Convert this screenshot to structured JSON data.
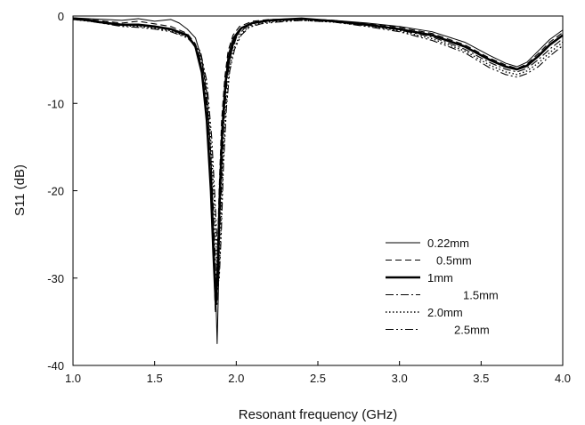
{
  "chart_data": {
    "type": "line",
    "title": "",
    "xlabel": "Resonant frequency (GHz)",
    "ylabel": "S11 (dB)",
    "xlim": [
      1.0,
      4.0
    ],
    "ylim": [
      -40,
      0
    ],
    "xticks": [
      1.0,
      1.5,
      2.0,
      2.5,
      3.0,
      3.5,
      4.0
    ],
    "xtick_labels": [
      "1.0",
      "1.5",
      "2.0",
      "2.5",
      "3.0",
      "3.5",
      "4.0"
    ],
    "yticks": [
      0,
      -10,
      -20,
      -30,
      -40
    ],
    "ytick_labels": [
      "0",
      "-10",
      "-20",
      "-30",
      "-40"
    ],
    "grid": false,
    "legend_position": "lower-right",
    "series": [
      {
        "name": "0.22mm",
        "style": "solid-thin",
        "color": "#000000",
        "points": [
          [
            1.0,
            -0.2
          ],
          [
            1.1,
            -0.3
          ],
          [
            1.2,
            -0.4
          ],
          [
            1.3,
            -0.5
          ],
          [
            1.4,
            -0.3
          ],
          [
            1.5,
            -0.6
          ],
          [
            1.6,
            -0.4
          ],
          [
            1.65,
            -0.8
          ],
          [
            1.7,
            -1.5
          ],
          [
            1.75,
            -2.5
          ],
          [
            1.79,
            -5
          ],
          [
            1.82,
            -9
          ],
          [
            1.845,
            -16
          ],
          [
            1.86,
            -24
          ],
          [
            1.875,
            -32
          ],
          [
            1.883,
            -37.5
          ],
          [
            1.89,
            -32
          ],
          [
            1.9,
            -22
          ],
          [
            1.915,
            -14
          ],
          [
            1.93,
            -8
          ],
          [
            1.95,
            -4.5
          ],
          [
            1.98,
            -2.5
          ],
          [
            2.02,
            -1.5
          ],
          [
            2.1,
            -0.8
          ],
          [
            2.2,
            -0.5
          ],
          [
            2.4,
            -0.3
          ],
          [
            2.6,
            -0.5
          ],
          [
            2.8,
            -0.8
          ],
          [
            3.0,
            -1.2
          ],
          [
            3.2,
            -1.8
          ],
          [
            3.4,
            -3.0
          ],
          [
            3.55,
            -4.5
          ],
          [
            3.65,
            -5.4
          ],
          [
            3.72,
            -5.8
          ],
          [
            3.78,
            -5.3
          ],
          [
            3.85,
            -4.0
          ],
          [
            3.92,
            -2.7
          ],
          [
            4.0,
            -1.6
          ]
        ]
      },
      {
        "name": "0.5mm",
        "style": "dashed",
        "color": "#000000",
        "points": [
          [
            1.0,
            -0.2
          ],
          [
            1.1,
            -0.4
          ],
          [
            1.2,
            -0.6
          ],
          [
            1.3,
            -0.8
          ],
          [
            1.4,
            -0.6
          ],
          [
            1.5,
            -0.9
          ],
          [
            1.6,
            -1.2
          ],
          [
            1.7,
            -2.0
          ],
          [
            1.75,
            -3.2
          ],
          [
            1.79,
            -6
          ],
          [
            1.82,
            -11
          ],
          [
            1.845,
            -19
          ],
          [
            1.86,
            -27
          ],
          [
            1.872,
            -34
          ],
          [
            1.882,
            -29
          ],
          [
            1.895,
            -20
          ],
          [
            1.91,
            -12
          ],
          [
            1.93,
            -7
          ],
          [
            1.95,
            -4
          ],
          [
            1.98,
            -2.2
          ],
          [
            2.02,
            -1.2
          ],
          [
            2.1,
            -0.6
          ],
          [
            2.2,
            -0.4
          ],
          [
            2.4,
            -0.3
          ],
          [
            2.6,
            -0.5
          ],
          [
            2.8,
            -0.9
          ],
          [
            3.0,
            -1.3
          ],
          [
            3.2,
            -2.0
          ],
          [
            3.4,
            -3.3
          ],
          [
            3.55,
            -4.8
          ],
          [
            3.65,
            -5.6
          ],
          [
            3.72,
            -6.0
          ],
          [
            3.78,
            -5.5
          ],
          [
            3.85,
            -4.3
          ],
          [
            3.92,
            -3.0
          ],
          [
            4.0,
            -1.9
          ]
        ]
      },
      {
        "name": "1mm",
        "style": "solid-thick",
        "color": "#000000",
        "points": [
          [
            1.0,
            -0.3
          ],
          [
            1.1,
            -0.5
          ],
          [
            1.2,
            -0.8
          ],
          [
            1.3,
            -1.0
          ],
          [
            1.4,
            -1.0
          ],
          [
            1.5,
            -1.2
          ],
          [
            1.6,
            -1.5
          ],
          [
            1.7,
            -2.2
          ],
          [
            1.75,
            -3.5
          ],
          [
            1.79,
            -6.5
          ],
          [
            1.82,
            -12
          ],
          [
            1.845,
            -20
          ],
          [
            1.86,
            -27
          ],
          [
            1.875,
            -33
          ],
          [
            1.888,
            -28
          ],
          [
            1.9,
            -20
          ],
          [
            1.915,
            -13
          ],
          [
            1.935,
            -7.5
          ],
          [
            1.96,
            -4.5
          ],
          [
            1.99,
            -2.5
          ],
          [
            2.03,
            -1.4
          ],
          [
            2.1,
            -0.8
          ],
          [
            2.2,
            -0.5
          ],
          [
            2.4,
            -0.3
          ],
          [
            2.6,
            -0.6
          ],
          [
            2.8,
            -1.0
          ],
          [
            3.0,
            -1.5
          ],
          [
            3.2,
            -2.2
          ],
          [
            3.4,
            -3.5
          ],
          [
            3.55,
            -5.0
          ],
          [
            3.65,
            -5.8
          ],
          [
            3.72,
            -6.1
          ],
          [
            3.78,
            -5.7
          ],
          [
            3.85,
            -4.6
          ],
          [
            3.92,
            -3.3
          ],
          [
            4.0,
            -2.2
          ]
        ]
      },
      {
        "name": "1.5mm",
        "style": "dash-dot",
        "color": "#000000",
        "points": [
          [
            1.0,
            -0.3
          ],
          [
            1.1,
            -0.5
          ],
          [
            1.2,
            -0.7
          ],
          [
            1.3,
            -1.0
          ],
          [
            1.4,
            -1.1
          ],
          [
            1.5,
            -1.3
          ],
          [
            1.6,
            -1.6
          ],
          [
            1.7,
            -2.3
          ],
          [
            1.76,
            -3.6
          ],
          [
            1.8,
            -6.5
          ],
          [
            1.83,
            -12
          ],
          [
            1.855,
            -20
          ],
          [
            1.87,
            -27
          ],
          [
            1.882,
            -33
          ],
          [
            1.895,
            -27
          ],
          [
            1.91,
            -19
          ],
          [
            1.925,
            -12
          ],
          [
            1.945,
            -7
          ],
          [
            1.97,
            -4.2
          ],
          [
            2.0,
            -2.5
          ],
          [
            2.05,
            -1.4
          ],
          [
            2.12,
            -0.8
          ],
          [
            2.2,
            -0.6
          ],
          [
            2.4,
            -0.4
          ],
          [
            2.6,
            -0.6
          ],
          [
            2.8,
            -1.0
          ],
          [
            3.0,
            -1.6
          ],
          [
            3.2,
            -2.4
          ],
          [
            3.4,
            -3.8
          ],
          [
            3.55,
            -5.3
          ],
          [
            3.65,
            -6.1
          ],
          [
            3.72,
            -6.4
          ],
          [
            3.78,
            -6.0
          ],
          [
            3.85,
            -5.0
          ],
          [
            3.92,
            -3.8
          ],
          [
            4.0,
            -2.6
          ]
        ]
      },
      {
        "name": "2.0mm",
        "style": "dotted",
        "color": "#000000",
        "points": [
          [
            1.0,
            -0.4
          ],
          [
            1.1,
            -0.6
          ],
          [
            1.2,
            -0.8
          ],
          [
            1.3,
            -1.1
          ],
          [
            1.4,
            -1.2
          ],
          [
            1.5,
            -1.4
          ],
          [
            1.6,
            -1.7
          ],
          [
            1.7,
            -2.4
          ],
          [
            1.77,
            -3.8
          ],
          [
            1.81,
            -7
          ],
          [
            1.84,
            -13
          ],
          [
            1.865,
            -21
          ],
          [
            1.88,
            -28
          ],
          [
            1.89,
            -31
          ],
          [
            1.903,
            -26
          ],
          [
            1.917,
            -18
          ],
          [
            1.935,
            -11
          ],
          [
            1.955,
            -6.5
          ],
          [
            1.98,
            -4.0
          ],
          [
            2.02,
            -2.3
          ],
          [
            2.07,
            -1.3
          ],
          [
            2.15,
            -0.8
          ],
          [
            2.25,
            -0.6
          ],
          [
            2.4,
            -0.5
          ],
          [
            2.6,
            -0.7
          ],
          [
            2.8,
            -1.1
          ],
          [
            3.0,
            -1.7
          ],
          [
            3.2,
            -2.6
          ],
          [
            3.4,
            -4.0
          ],
          [
            3.55,
            -5.6
          ],
          [
            3.65,
            -6.4
          ],
          [
            3.72,
            -6.7
          ],
          [
            3.78,
            -6.3
          ],
          [
            3.85,
            -5.4
          ],
          [
            3.92,
            -4.2
          ],
          [
            4.0,
            -3.0
          ]
        ]
      },
      {
        "name": "2.5mm",
        "style": "dash-dot-dot",
        "color": "#000000",
        "points": [
          [
            1.0,
            -0.4
          ],
          [
            1.1,
            -0.6
          ],
          [
            1.2,
            -0.9
          ],
          [
            1.3,
            -1.2
          ],
          [
            1.4,
            -1.3
          ],
          [
            1.5,
            -1.5
          ],
          [
            1.6,
            -1.8
          ],
          [
            1.7,
            -2.5
          ],
          [
            1.78,
            -4.0
          ],
          [
            1.82,
            -7.5
          ],
          [
            1.85,
            -14
          ],
          [
            1.87,
            -21
          ],
          [
            1.885,
            -27
          ],
          [
            1.896,
            -30
          ],
          [
            1.908,
            -25
          ],
          [
            1.922,
            -17
          ],
          [
            1.94,
            -10.5
          ],
          [
            1.96,
            -6.3
          ],
          [
            1.99,
            -3.8
          ],
          [
            2.03,
            -2.2
          ],
          [
            2.08,
            -1.3
          ],
          [
            2.15,
            -0.9
          ],
          [
            2.25,
            -0.7
          ],
          [
            2.4,
            -0.5
          ],
          [
            2.6,
            -0.7
          ],
          [
            2.8,
            -1.2
          ],
          [
            3.0,
            -1.8
          ],
          [
            3.2,
            -2.8
          ],
          [
            3.4,
            -4.2
          ],
          [
            3.55,
            -5.9
          ],
          [
            3.65,
            -6.7
          ],
          [
            3.72,
            -7.0
          ],
          [
            3.78,
            -6.6
          ],
          [
            3.85,
            -5.8
          ],
          [
            3.92,
            -4.6
          ],
          [
            4.0,
            -3.4
          ]
        ]
      }
    ]
  }
}
